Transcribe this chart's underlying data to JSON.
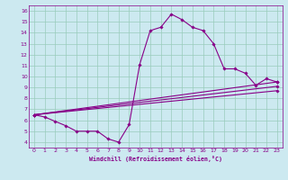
{
  "title": "",
  "xlabel": "Windchill (Refroidissement éolien,°C)",
  "background_color": "#cce9f0",
  "line_color": "#880088",
  "grid_color": "#99ccbb",
  "xlim": [
    -0.5,
    23.5
  ],
  "ylim": [
    3.5,
    16.5
  ],
  "xticks": [
    0,
    1,
    2,
    3,
    4,
    5,
    6,
    7,
    8,
    9,
    10,
    11,
    12,
    13,
    14,
    15,
    16,
    17,
    18,
    19,
    20,
    21,
    22,
    23
  ],
  "yticks": [
    4,
    5,
    6,
    7,
    8,
    9,
    10,
    11,
    12,
    13,
    14,
    15,
    16
  ],
  "series": [
    {
      "x": [
        0,
        1,
        2,
        3,
        4,
        5,
        6,
        7,
        8,
        9,
        10,
        11,
        12,
        13,
        14,
        15,
        16,
        17,
        18,
        19,
        20,
        21,
        22,
        23
      ],
      "y": [
        6.5,
        6.3,
        5.9,
        5.5,
        5.0,
        5.0,
        5.0,
        4.3,
        4.0,
        5.6,
        11.1,
        14.2,
        14.5,
        15.7,
        15.2,
        14.5,
        14.2,
        13.0,
        10.7,
        10.7,
        10.3,
        9.2,
        9.8,
        9.5
      ]
    },
    {
      "x": [
        0,
        23
      ],
      "y": [
        6.5,
        9.5
      ]
    },
    {
      "x": [
        0,
        23
      ],
      "y": [
        6.5,
        8.7
      ]
    },
    {
      "x": [
        0,
        23
      ],
      "y": [
        6.5,
        9.1
      ]
    }
  ]
}
